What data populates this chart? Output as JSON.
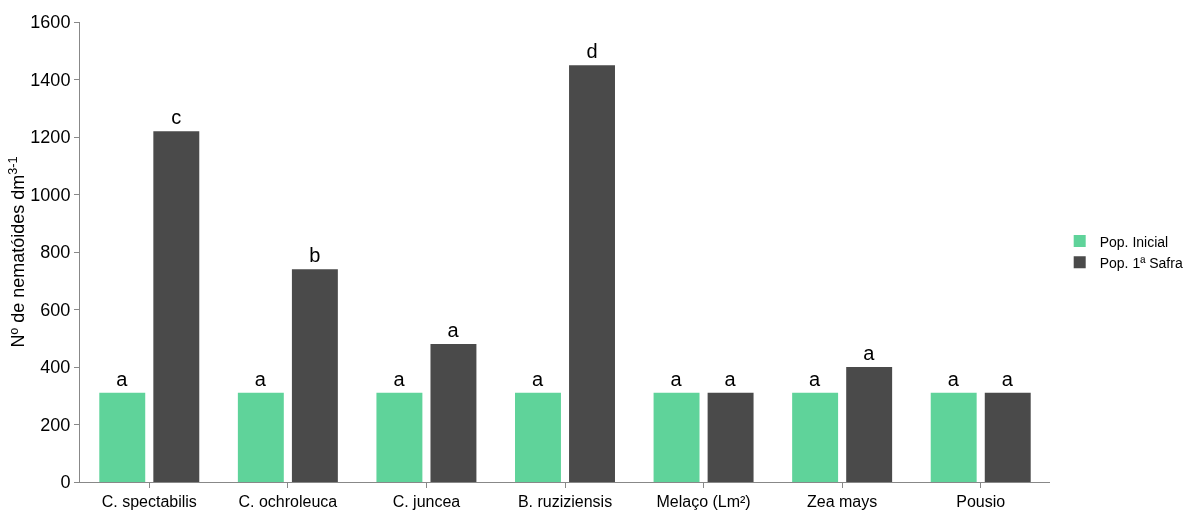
{
  "chart_data": {
    "type": "bar",
    "ylabel": "Nº de nematóides dm$^{3-1}$",
    "categories": [
      "C. spectabilis",
      "C. ochroleuca",
      "C. juncea",
      "B. ruziziensis",
      "Melaço (Lm²)",
      "Zea mays",
      "Pousio"
    ],
    "series": [
      {
        "name": "Pop. Inicial",
        "color": "#5fd39a",
        "values": [
          310,
          310,
          310,
          310,
          310,
          310,
          310
        ],
        "value_labels": [
          "a",
          "a",
          "a",
          "a",
          "a",
          "a",
          "a"
        ]
      },
      {
        "name": "Pop. 1ª Safra",
        "color": "#4a4a4a",
        "values": [
          1220,
          740,
          480,
          1450,
          310,
          400,
          310
        ],
        "value_labels": [
          "c",
          "b",
          "a",
          "d",
          "a",
          "a",
          "a"
        ]
      }
    ],
    "ylim": [
      0,
      1600
    ],
    "yticks": [
      0,
      200,
      400,
      600,
      800,
      1000,
      1200,
      1400,
      1600
    ],
    "grid": false,
    "legend": "right"
  }
}
